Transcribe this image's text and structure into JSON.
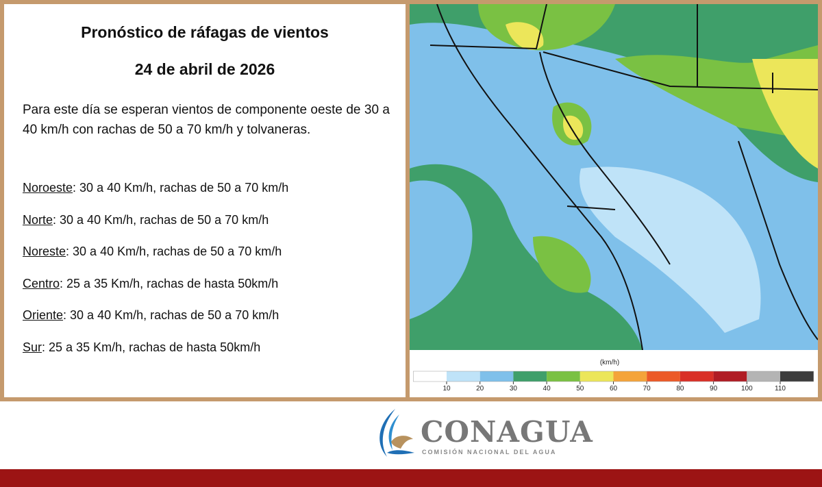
{
  "header": {
    "title": "Pronóstico de ráfagas de vientos",
    "date": "24 de abril de 2026"
  },
  "intro": "Para este día se esperan vientos de componente oeste de 30 a 40 km/h con rachas de 50 a 70 km/h y tolvaneras.",
  "regions": [
    {
      "name": "Noroeste",
      "text": ":  30 a 40 Km/h, rachas de 50 a 70 km/h"
    },
    {
      "name": "Norte",
      "text": ": 30 a 40 Km/h, rachas de 50 a 70 km/h"
    },
    {
      "name": "Noreste",
      "text": ": 30 a 40 Km/h, rachas de 50 a 70 km/h"
    },
    {
      "name": "Centro",
      "text": ":  25 a 35 Km/h, rachas de hasta 50km/h"
    },
    {
      "name": "Oriente",
      "text": ":  30 a 40 Km/h, rachas de 50 a 70 km/h"
    },
    {
      "name": "Sur",
      "text": ":  25 a 35 Km/h, rachas de hasta 50km/h"
    }
  ],
  "legend": {
    "unit": "(km/h)",
    "ticks": [
      10,
      20,
      30,
      40,
      50,
      60,
      70,
      80,
      90,
      100,
      110
    ],
    "colors": [
      "#ffffff",
      "#bfe3f8",
      "#7fc0ea",
      "#3f9f6a",
      "#7ac143",
      "#ece65a",
      "#f4a43a",
      "#ec5a27",
      "#d93027",
      "#b01c24",
      "#b4b4b4",
      "#3c3c3c"
    ]
  },
  "logo": {
    "name": "CONAGUA",
    "subtitle": "COMISIÓN NACIONAL DEL AGUA"
  }
}
